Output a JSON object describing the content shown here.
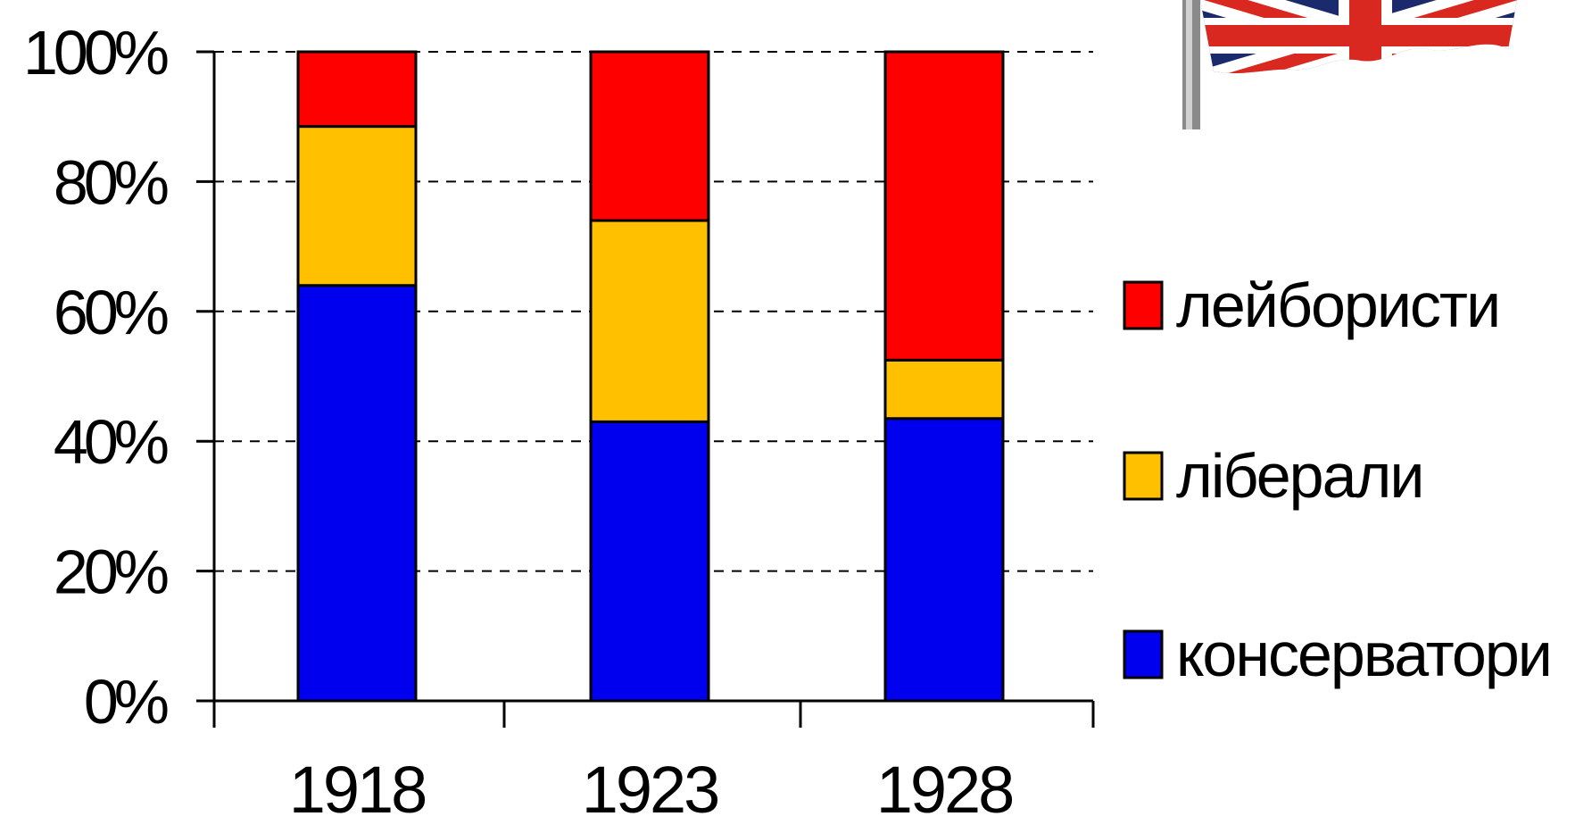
{
  "chart_data": {
    "type": "bar",
    "stacked": true,
    "categories": [
      "1918",
      "1923",
      "1928"
    ],
    "series": [
      {
        "name": "консерватори",
        "color": "#0000ee",
        "values": [
          64,
          43,
          43.5
        ]
      },
      {
        "name": "ліберали",
        "color": "#ffc000",
        "values": [
          24.5,
          31,
          9
        ]
      },
      {
        "name": "лейбористи",
        "color": "#ff0000",
        "values": [
          11.5,
          26,
          47.5
        ]
      }
    ],
    "ylim": [
      0,
      100
    ],
    "yticks": [
      "0%",
      "20%",
      "40%",
      "60%",
      "80%",
      "100%"
    ],
    "grid": true,
    "legend_position": "right"
  },
  "decoration": {
    "flag_icon": "union-jack-flag-icon"
  }
}
